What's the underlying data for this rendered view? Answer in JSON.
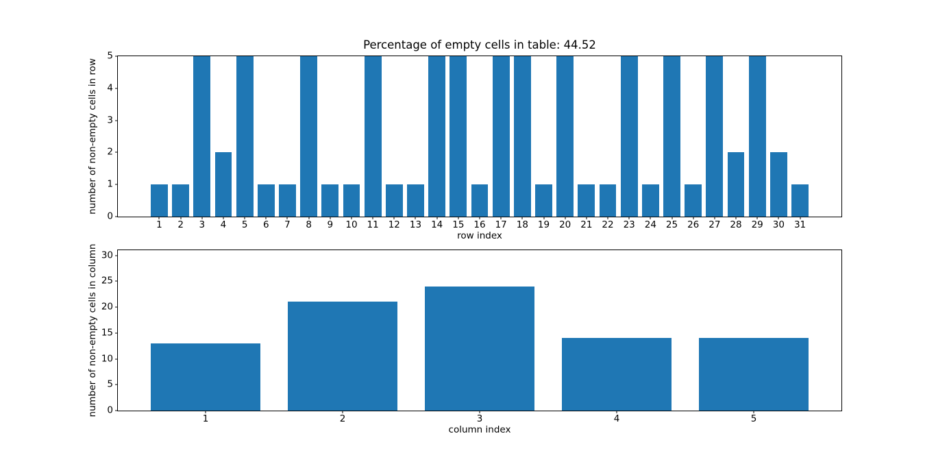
{
  "figure": {
    "background_color": "#ffffff",
    "bar_color": "#1f77b4",
    "axis_color": "#000000",
    "text_color": "#000000"
  },
  "chart_data": [
    {
      "type": "bar",
      "title": "Percentage of empty cells in table: 44.52",
      "xlabel": "row index",
      "ylabel": "number of non-empty cells in row",
      "categories": [
        1,
        2,
        3,
        4,
        5,
        6,
        7,
        8,
        9,
        10,
        11,
        12,
        13,
        14,
        15,
        16,
        17,
        18,
        19,
        20,
        21,
        22,
        23,
        24,
        25,
        26,
        27,
        28,
        29,
        30,
        31
      ],
      "values": [
        1,
        1,
        5,
        2,
        5,
        1,
        1,
        5,
        1,
        1,
        5,
        1,
        1,
        5,
        5,
        1,
        5,
        5,
        1,
        5,
        1,
        1,
        5,
        1,
        5,
        1,
        5,
        2,
        5,
        2,
        1
      ],
      "bar_width": 0.8,
      "xlim": [
        -0.94,
        32.94
      ],
      "ylim": [
        0,
        5
      ],
      "yticks": [
        0,
        1,
        2,
        3,
        4,
        5
      ],
      "grid": false,
      "legend": null
    },
    {
      "type": "bar",
      "title": "",
      "xlabel": "column index",
      "ylabel": "number of non-empty cells in column",
      "categories": [
        1,
        2,
        3,
        4,
        5
      ],
      "values": [
        13,
        21,
        24,
        14,
        14
      ],
      "bar_width": 0.8,
      "xlim": [
        0.36,
        5.64
      ],
      "ylim": [
        0,
        31
      ],
      "yticks": [
        0,
        5,
        10,
        15,
        20,
        25,
        30
      ],
      "grid": false,
      "legend": null
    }
  ]
}
